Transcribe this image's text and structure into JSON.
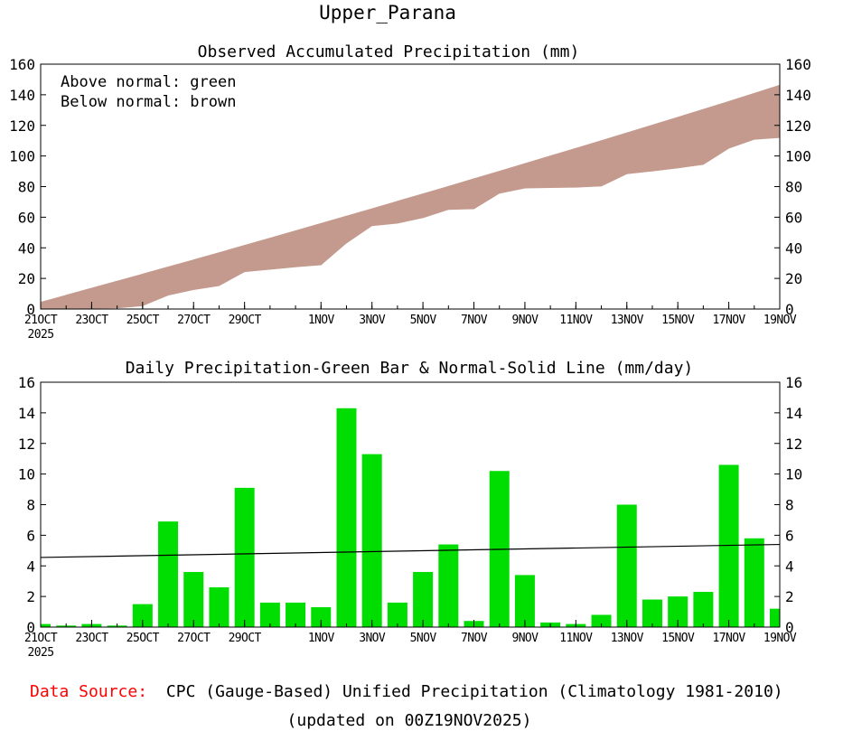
{
  "title": "Upper_Parana",
  "footer": {
    "source_label": "Data Source:",
    "source_text": "CPC (Gauge-Based) Unified Precipitation (Climatology 1981-2010)",
    "updated": "(updated on 00Z19NOV2025)"
  },
  "colors": {
    "below_normal": "#c49a8e",
    "above_normal": "#00dd00",
    "bar": "#00dd00",
    "line": "#000000",
    "source_label": "#ff0000"
  },
  "chart_data": [
    {
      "type": "area",
      "title": "Observed Accumulated Precipitation (mm)",
      "legend": [
        "Above normal: green",
        "Below normal: brown"
      ],
      "legend_position": "top-left",
      "x_tick_labels": [
        "21OCT",
        "23OCT",
        "25OCT",
        "27OCT",
        "29OCT",
        "1NOV",
        "3NOV",
        "5NOV",
        "7NOV",
        "9NOV",
        "11NOV",
        "13NOV",
        "15NOV",
        "17NOV",
        "19NOV"
      ],
      "x_tick_days": [
        0,
        2,
        4,
        6,
        8,
        11,
        13,
        15,
        17,
        19,
        21,
        23,
        25,
        27,
        29
      ],
      "x_sub_label": "2025",
      "ylim": [
        0,
        160
      ],
      "y_ticks": [
        0,
        20,
        40,
        60,
        80,
        100,
        120,
        140,
        160
      ],
      "series": [
        {
          "name": "Normal accumulated",
          "values": [
            4.5,
            9.1,
            13.7,
            18.3,
            22.9,
            27.6,
            32.2,
            36.9,
            41.7,
            46.4,
            51.2,
            56,
            60.8,
            65.6,
            70.5,
            75.3,
            80.2,
            85.2,
            90.1,
            95.1,
            100.1,
            105.1,
            110.1,
            115.2,
            120.3,
            125.4,
            130.5,
            135.7,
            141,
            146.3
          ]
        },
        {
          "name": "Observed accumulated",
          "values": [
            0.2,
            0.3,
            0.5,
            0.6,
            2.1,
            9,
            12.6,
            15.2,
            24.3,
            25.9,
            27.5,
            28.8,
            43.1,
            54.4,
            56,
            59.6,
            65,
            65.4,
            75.6,
            79,
            79.3,
            79.5,
            80.3,
            88.3,
            90.1,
            92.1,
            94.4,
            105,
            110.8,
            112
          ]
        }
      ]
    },
    {
      "type": "bar",
      "title": "Daily Precipitation-Green Bar & Normal-Solid Line (mm/day)",
      "x_tick_labels": [
        "21OCT",
        "23OCT",
        "25OCT",
        "27OCT",
        "29OCT",
        "1NOV",
        "3NOV",
        "5NOV",
        "7NOV",
        "9NOV",
        "11NOV",
        "13NOV",
        "15NOV",
        "17NOV",
        "19NOV"
      ],
      "x_tick_days": [
        0,
        2,
        4,
        6,
        8,
        11,
        13,
        15,
        17,
        19,
        21,
        23,
        25,
        27,
        29
      ],
      "x_sub_label": "2025",
      "ylim": [
        0,
        16
      ],
      "y_ticks": [
        0,
        2,
        4,
        6,
        8,
        10,
        12,
        14,
        16
      ],
      "series": [
        {
          "name": "Daily precipitation",
          "values": [
            0.2,
            0.1,
            0.2,
            0.1,
            1.5,
            6.9,
            3.6,
            2.6,
            9.1,
            1.6,
            1.6,
            1.3,
            14.3,
            11.3,
            1.6,
            3.6,
            5.4,
            0.4,
            10.2,
            3.4,
            0.3,
            0.2,
            0.8,
            8.0,
            1.8,
            2.0,
            2.3,
            10.6,
            5.8,
            1.2
          ]
        },
        {
          "name": "Normal",
          "values_start_end": [
            4.55,
            5.4
          ]
        }
      ]
    }
  ]
}
